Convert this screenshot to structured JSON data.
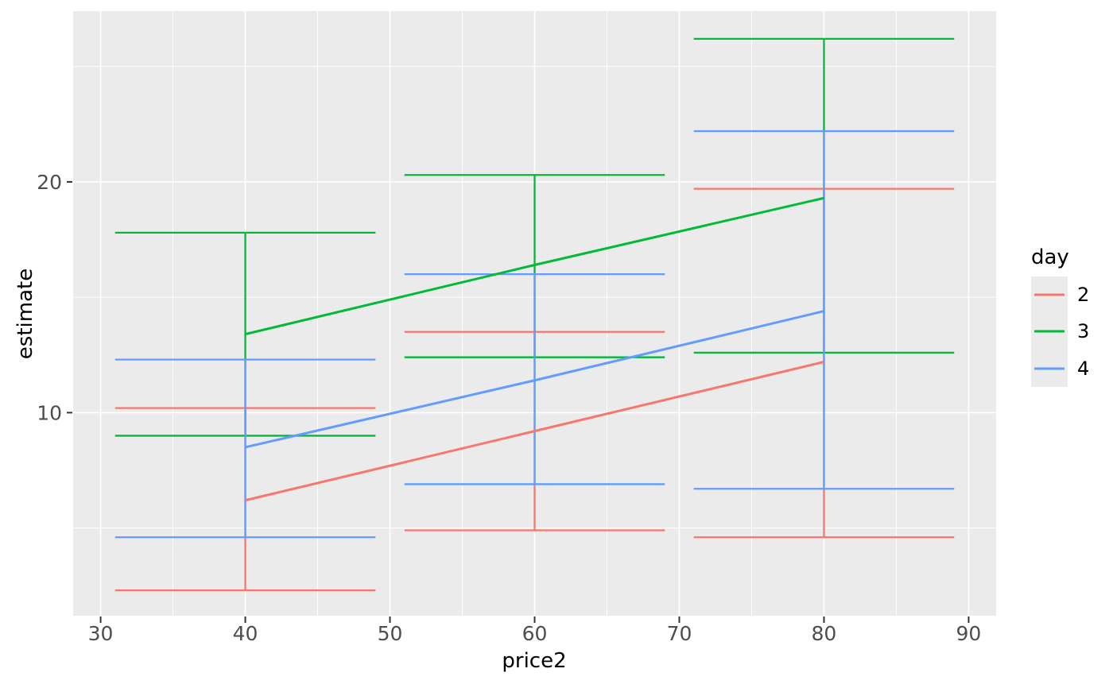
{
  "chart_data": {
    "type": "line",
    "subtype": "trend-lines-with-errorbars",
    "title": "",
    "xlabel": "price2",
    "ylabel": "estimate",
    "x_ticks": [
      30,
      40,
      50,
      60,
      70,
      80,
      90
    ],
    "x_minor_ticks": [
      35,
      45,
      55,
      65,
      75,
      85
    ],
    "y_ticks": [
      10,
      20
    ],
    "y_minor_ticks": [
      5,
      15,
      25
    ],
    "xlim": [
      28.1,
      91.9
    ],
    "ylim": [
      1.2,
      27.4
    ],
    "grid": "on",
    "panel_bg": "#EBEBEB",
    "grid_color": "#FFFFFF",
    "tick_color": "#333333",
    "tick_label_color": "#4D4D4D",
    "legend": {
      "title": "day",
      "position": "right",
      "entries": [
        {
          "label": "2",
          "color": "#F8766D"
        },
        {
          "label": "3",
          "color": "#00BA38"
        },
        {
          "label": "4",
          "color": "#619CFF"
        }
      ]
    },
    "series": [
      {
        "name": "2",
        "color": "#F8766D",
        "line": {
          "x": [
            40,
            60,
            80
          ],
          "y": [
            6.2,
            9.2,
            12.2
          ]
        },
        "errorbars": [
          {
            "x": 40,
            "xmin": 31,
            "xmax": 49,
            "ymin": 2.3,
            "ymax": 10.2
          },
          {
            "x": 60,
            "xmin": 51,
            "xmax": 69,
            "ymin": 4.9,
            "ymax": 13.5
          },
          {
            "x": 80,
            "xmin": 71,
            "xmax": 89,
            "ymin": 4.6,
            "ymax": 19.7
          }
        ]
      },
      {
        "name": "3",
        "color": "#00BA38",
        "line": {
          "x": [
            40,
            60,
            80
          ],
          "y": [
            13.4,
            16.4,
            19.3
          ]
        },
        "errorbars": [
          {
            "x": 40,
            "xmin": 31,
            "xmax": 49,
            "ymin": 9.0,
            "ymax": 17.8
          },
          {
            "x": 60,
            "xmin": 51,
            "xmax": 69,
            "ymin": 12.4,
            "ymax": 20.3
          },
          {
            "x": 80,
            "xmin": 71,
            "xmax": 89,
            "ymin": 12.6,
            "ymax": 26.2
          }
        ]
      },
      {
        "name": "4",
        "color": "#619CFF",
        "line": {
          "x": [
            40,
            60,
            80
          ],
          "y": [
            8.5,
            11.4,
            14.4
          ]
        },
        "errorbars": [
          {
            "x": 40,
            "xmin": 31,
            "xmax": 49,
            "ymin": 4.6,
            "ymax": 12.3
          },
          {
            "x": 60,
            "xmin": 51,
            "xmax": 69,
            "ymin": 6.9,
            "ymax": 16.0
          },
          {
            "x": 80,
            "xmin": 71,
            "xmax": 89,
            "ymin": 6.7,
            "ymax": 22.2
          }
        ]
      }
    ]
  }
}
